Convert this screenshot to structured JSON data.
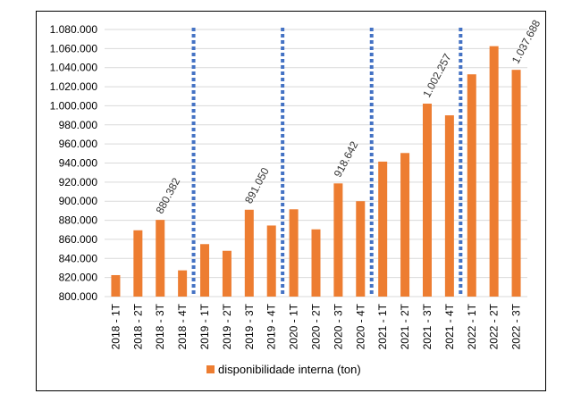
{
  "chart_data": {
    "type": "bar",
    "title": "",
    "xlabel": "",
    "ylabel": "",
    "ylim": [
      800000,
      1080000
    ],
    "yticks": [
      800000,
      820000,
      840000,
      860000,
      880000,
      900000,
      920000,
      940000,
      960000,
      980000,
      1000000,
      1020000,
      1040000,
      1060000,
      1080000
    ],
    "ytick_labels": [
      "800.000",
      "820.000",
      "840.000",
      "860.000",
      "880.000",
      "900.000",
      "920.000",
      "940.000",
      "960.000",
      "980.000",
      "1.000.000",
      "1.020.000",
      "1.040.000",
      "1.060.000",
      "1.080.000"
    ],
    "grid": "horizontal",
    "legend_position": "bottom",
    "categories": [
      "2018 - 1T",
      "2018 - 2T",
      "2018 - 3T",
      "2018 - 4T",
      "2019 - 1T",
      "2019 - 2T",
      "2019 - 3T",
      "2019 - 4T",
      "2020 - 1T",
      "2020 - 2T",
      "2020 - 3T",
      "2020 - 4T",
      "2021 - 1T",
      "2021 - 2T",
      "2021 - 3T",
      "2021 - 4T",
      "2022 - 1T",
      "2022 - 2T",
      "2022 - 3T"
    ],
    "series": [
      {
        "name": "disponibilidade interna (ton)",
        "color": "#ED7D31",
        "values": [
          822500,
          869500,
          880382,
          827500,
          855000,
          848000,
          891050,
          874500,
          891500,
          870500,
          918642,
          900000,
          941500,
          950500,
          1002257,
          990000,
          1033000,
          1062500,
          1037688
        ]
      }
    ],
    "data_labels": [
      {
        "index": 2,
        "text": "880.382"
      },
      {
        "index": 6,
        "text": "891.050"
      },
      {
        "index": 10,
        "text": "918.642"
      },
      {
        "index": 14,
        "text": "1.002.257"
      },
      {
        "index": 18,
        "text": "1.037.688"
      }
    ],
    "separators": {
      "after_indices": [
        3,
        7,
        11,
        15
      ],
      "color": "#4472C4",
      "style": "dotted"
    }
  }
}
